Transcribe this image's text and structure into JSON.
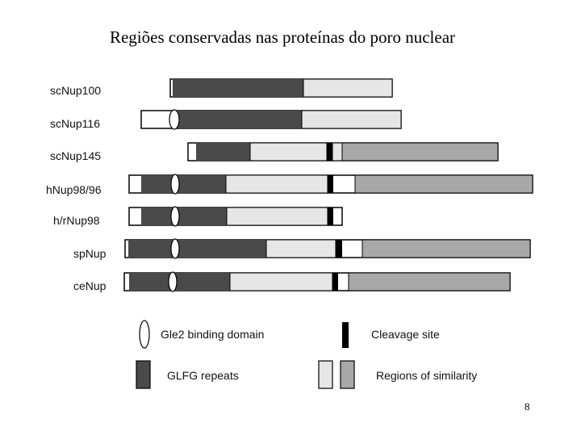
{
  "title": "Regiões conservadas nas proteínas do poro nuclear",
  "page_number": "8",
  "colors": {
    "glfg": "#4a4a4a",
    "similarity_light": "#e6e6e6",
    "similarity_dark": "#a8a8a8",
    "cleavage": "#000000",
    "outline": "#000000",
    "background": "#ffffff"
  },
  "proteins": [
    {
      "name": "scNup100"
    },
    {
      "name": "scNup116"
    },
    {
      "name": "scNup145"
    },
    {
      "name": "hNup98/96"
    },
    {
      "name": "h/rNup98"
    },
    {
      "name": "spNup"
    },
    {
      "name": "ceNup"
    }
  ],
  "legend": {
    "gle2": "Gle2 binding domain",
    "cleavage": "Cleavage site",
    "glfg": "GLFG repeats",
    "similarity": "Regions of similarity"
  }
}
